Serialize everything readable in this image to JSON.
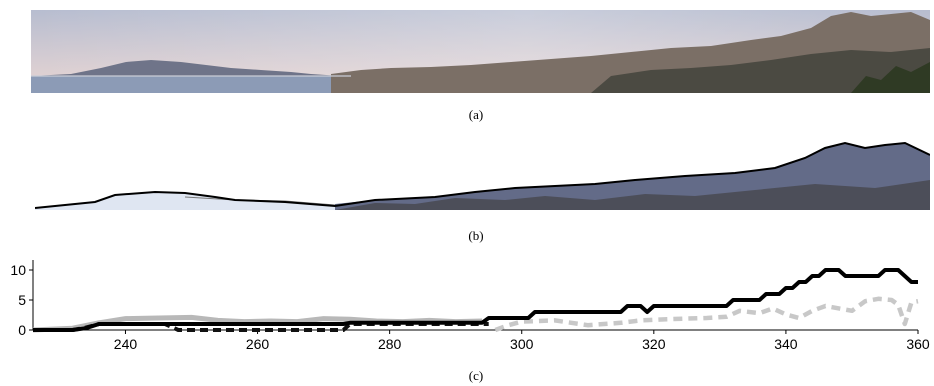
{
  "captions": {
    "a": "(a)",
    "b": "(b)",
    "c": "(c)"
  },
  "colors": {
    "sky_top": "#b7bdd0",
    "sky_horizon": "#e9d6d3",
    "sea": "#8c9bb6",
    "hills_far": "#6f7489",
    "city": "#7b6f66",
    "hills_near": "#4b4a42",
    "series_1": "#000000",
    "series_2": "#b8b8b8",
    "series_3": "#111111",
    "series_4": "#c8c8c8"
  },
  "chart_data": {
    "type": "line",
    "title": "",
    "xlabel": "",
    "ylabel": "",
    "xlim": [
      226,
      360
    ],
    "ylim": [
      0,
      11
    ],
    "xticks": [
      240,
      260,
      280,
      300,
      320,
      340,
      360
    ],
    "yticks": [
      0,
      5,
      10
    ],
    "grid": false,
    "series": [
      {
        "style": "solid-black",
        "points": [
          [
            226,
            0
          ],
          [
            232,
            0
          ],
          [
            234,
            0.3
          ],
          [
            236,
            1
          ],
          [
            273,
            1
          ],
          [
            274,
            1.2
          ],
          [
            294,
            1.2
          ],
          [
            295,
            2
          ],
          [
            301,
            2
          ],
          [
            302,
            3
          ],
          [
            315,
            3
          ],
          [
            316,
            4
          ],
          [
            318,
            4
          ],
          [
            319,
            3
          ],
          [
            320,
            4
          ],
          [
            331,
            4
          ],
          [
            332,
            5
          ],
          [
            336,
            5
          ],
          [
            337,
            6
          ],
          [
            339,
            6
          ],
          [
            340,
            7
          ],
          [
            341,
            7
          ],
          [
            342,
            8
          ],
          [
            343,
            8
          ],
          [
            344,
            9
          ],
          [
            345,
            9
          ],
          [
            346,
            10
          ],
          [
            348,
            10
          ],
          [
            349,
            9
          ],
          [
            354,
            9
          ],
          [
            355,
            10
          ],
          [
            357,
            10
          ],
          [
            358,
            9
          ],
          [
            359,
            8
          ],
          [
            360,
            8
          ]
        ]
      },
      {
        "style": "solid-gray",
        "points": [
          [
            226,
            0
          ],
          [
            232,
            0.3
          ],
          [
            236,
            1.2
          ],
          [
            240,
            1.9
          ],
          [
            245,
            2.0
          ],
          [
            250,
            2.1
          ],
          [
            254,
            1.6
          ],
          [
            258,
            1.4
          ],
          [
            262,
            1.5
          ],
          [
            266,
            1.4
          ],
          [
            270,
            1.9
          ],
          [
            274,
            1.8
          ],
          [
            278,
            1.5
          ],
          [
            282,
            1.4
          ],
          [
            286,
            1.6
          ],
          [
            290,
            1.4
          ],
          [
            294,
            1.5
          ]
        ]
      },
      {
        "style": "dashed-black",
        "points": [
          [
            226,
            0
          ],
          [
            232,
            0
          ],
          [
            234,
            0.4
          ],
          [
            236,
            1
          ],
          [
            246,
            1
          ],
          [
            248,
            0
          ],
          [
            273,
            0
          ],
          [
            274,
            1
          ],
          [
            295,
            1
          ]
        ]
      },
      {
        "style": "dashed-gray",
        "points": [
          [
            296,
            0
          ],
          [
            298,
            0.8
          ],
          [
            300,
            1.4
          ],
          [
            305,
            1.6
          ],
          [
            310,
            0.8
          ],
          [
            315,
            1.2
          ],
          [
            318,
            1.6
          ],
          [
            322,
            1.8
          ],
          [
            328,
            2.0
          ],
          [
            331,
            2.2
          ],
          [
            333,
            3.2
          ],
          [
            336,
            2.8
          ],
          [
            338,
            3.6
          ],
          [
            340,
            2.6
          ],
          [
            342,
            2.0
          ],
          [
            344,
            3.2
          ],
          [
            346,
            4.0
          ],
          [
            350,
            3.2
          ],
          [
            352,
            4.8
          ],
          [
            354,
            5.2
          ],
          [
            356,
            5.0
          ],
          [
            357,
            4.2
          ],
          [
            358,
            1.0
          ],
          [
            359,
            4.6
          ],
          [
            360,
            4.8
          ]
        ]
      }
    ]
  }
}
